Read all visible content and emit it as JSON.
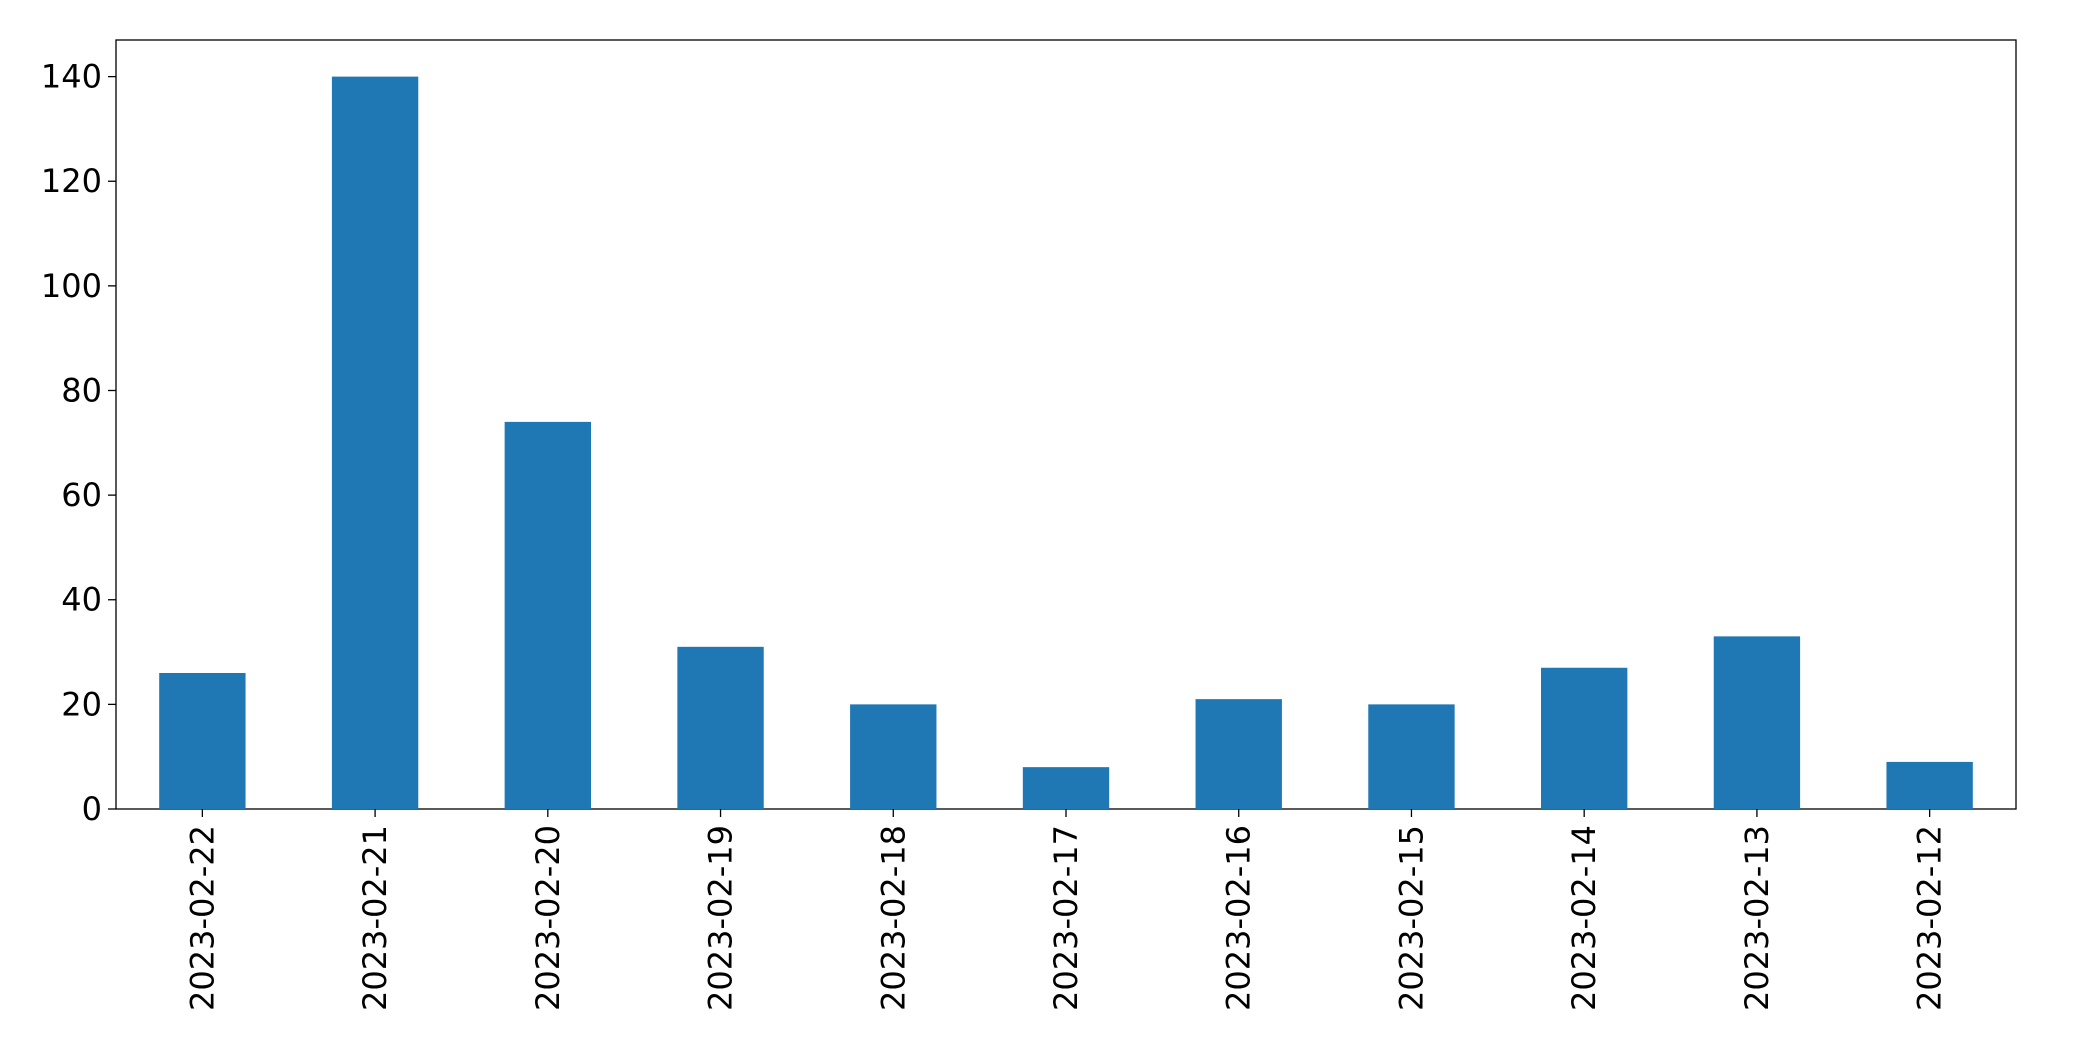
{
  "chart_data": {
    "type": "bar",
    "categories": [
      "2023-02-22",
      "2023-02-21",
      "2023-02-20",
      "2023-02-19",
      "2023-02-18",
      "2023-02-17",
      "2023-02-16",
      "2023-02-15",
      "2023-02-14",
      "2023-02-13",
      "2023-02-12"
    ],
    "values": [
      26,
      140,
      74,
      31,
      20,
      8,
      21,
      20,
      27,
      33,
      9
    ],
    "color": "#1f77b4",
    "ylim": [
      0,
      147
    ],
    "yticks": [
      0,
      20,
      40,
      60,
      80,
      100,
      120,
      140
    ],
    "grid": false
  }
}
